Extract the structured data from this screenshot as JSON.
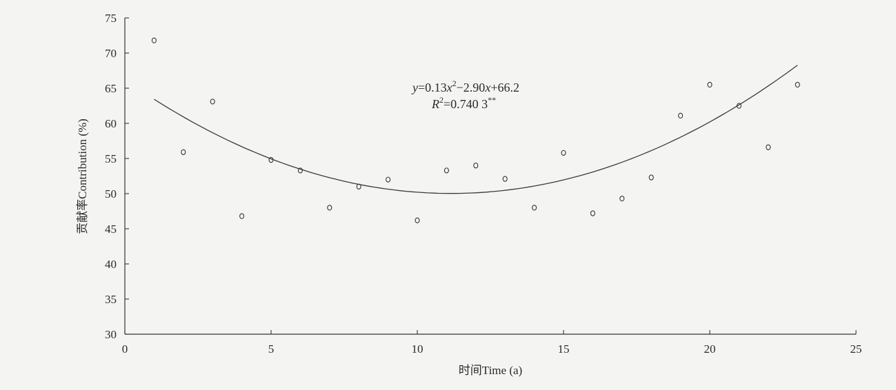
{
  "chart_data": {
    "type": "scatter",
    "xlabel": "时间Time (a)",
    "ylabel": "贡献率Contribution (%)",
    "xlim": [
      0,
      25
    ],
    "ylim": [
      30,
      75
    ],
    "x_ticks": [
      0,
      5,
      10,
      15,
      20,
      25
    ],
    "y_ticks": [
      30,
      35,
      40,
      45,
      50,
      55,
      60,
      65,
      70,
      75
    ],
    "grid": false,
    "series": [
      {
        "points": [
          [
            1,
            71.8
          ],
          [
            2,
            55.9
          ],
          [
            3,
            63.1
          ],
          [
            4,
            46.8
          ],
          [
            5,
            54.8
          ],
          [
            6,
            53.3
          ],
          [
            7,
            48.0
          ],
          [
            8,
            51.0
          ],
          [
            9,
            52.0
          ],
          [
            10,
            46.2
          ],
          [
            11,
            53.3
          ],
          [
            12,
            54.0
          ],
          [
            13,
            52.1
          ],
          [
            14,
            48.0
          ],
          [
            15,
            55.8
          ],
          [
            16,
            47.2
          ],
          [
            17,
            49.3
          ],
          [
            18,
            52.3
          ],
          [
            19,
            61.1
          ],
          [
            20,
            65.5
          ],
          [
            21,
            62.5
          ],
          [
            22,
            56.6
          ],
          [
            23,
            65.5
          ]
        ]
      }
    ],
    "fit": {
      "coefficients": {
        "a": 0.13,
        "b": -2.9,
        "c": 66.2
      },
      "x_range": [
        1,
        23
      ],
      "equation": {
        "prefix": "y",
        "body1": "=0.13",
        "var1": "x",
        "sup1": "2",
        "body2": "−2.90",
        "var2": "x",
        "body3": "+66.2"
      },
      "r2": {
        "prefix": "R",
        "sup1": "2",
        "body": "=0.740 3",
        "sup2": "**"
      }
    }
  }
}
